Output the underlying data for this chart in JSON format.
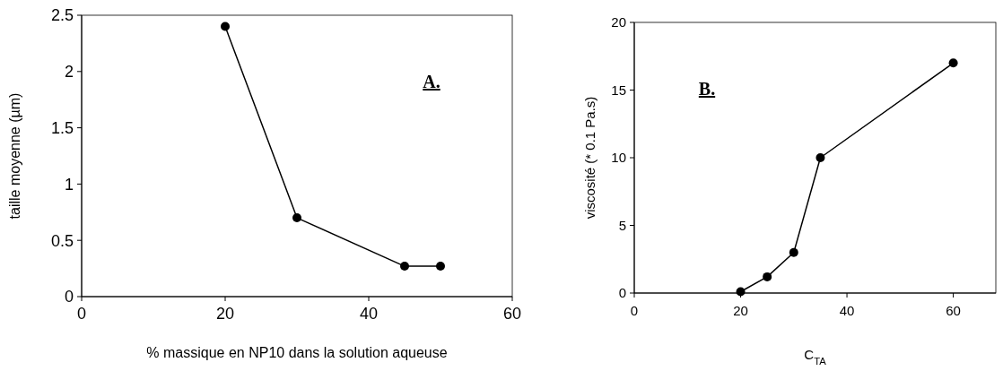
{
  "chart_data": [
    {
      "type": "line",
      "xlabel": "% massique en NP10 dans la solution aqueuse",
      "ylabel": "taille moyenne (µm)",
      "annotations": [
        "A."
      ],
      "x": [
        20,
        30,
        45,
        50
      ],
      "series": [
        {
          "color": "#000000",
          "values": [
            2.4,
            0.7,
            0.27,
            0.27
          ]
        }
      ],
      "xlim": [
        0,
        60
      ],
      "xticks": [
        0,
        20,
        40,
        60
      ],
      "ylim": [
        0,
        2.5
      ],
      "yticks": [
        0,
        0.5,
        1,
        1.5,
        2,
        2.5
      ],
      "grid": false,
      "marker": "circle",
      "line_style": "solid"
    },
    {
      "type": "line",
      "xlabel": "C$_{TA}$",
      "ylabel": "viscosité (* 0.1 Pa.s)",
      "annotations": [
        "B."
      ],
      "x": [
        20,
        25,
        30,
        35,
        60
      ],
      "series": [
        {
          "color": "#000000",
          "values": [
            0.1,
            1.2,
            3.0,
            10,
            17
          ]
        }
      ],
      "xlim": [
        0,
        68
      ],
      "xticks": [
        0,
        20,
        40,
        60
      ],
      "ylim": [
        0,
        20
      ],
      "yticks": [
        0,
        5,
        10,
        15,
        20
      ],
      "grid": false,
      "marker": "circle",
      "line_style": "solid"
    }
  ]
}
